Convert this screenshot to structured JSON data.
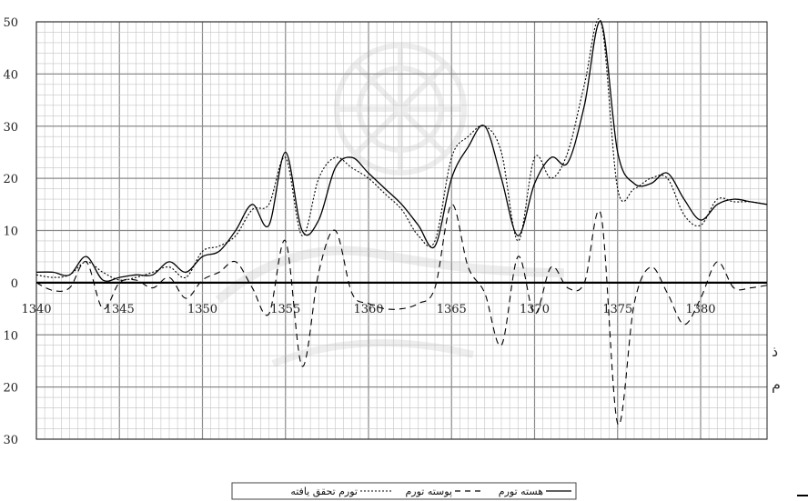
{
  "chart_data": {
    "type": "line",
    "title": "",
    "xlabel": "",
    "ylabel": "",
    "xlim": [
      1340,
      1384
    ],
    "ylim": [
      -30,
      50
    ],
    "x_ticks": [
      1340,
      1345,
      1350,
      1355,
      1360,
      1365,
      1370,
      1375,
      1380
    ],
    "y_ticks": [
      -30,
      -20,
      -10,
      0,
      10,
      20,
      30,
      40,
      50
    ],
    "y_tick_labels": [
      "30",
      "20",
      "10",
      "0",
      "10",
      "20",
      "30",
      "40",
      "50"
    ],
    "grid": true,
    "legend_placement": "bottom-center",
    "series": [
      {
        "name": "هسته تورم",
        "style": "solid",
        "x": [
          1340,
          1341,
          1342,
          1343,
          1344,
          1345,
          1346,
          1347,
          1348,
          1349,
          1350,
          1351,
          1352,
          1353,
          1354,
          1355,
          1356,
          1357,
          1358,
          1359,
          1360,
          1361,
          1362,
          1363,
          1364,
          1365,
          1366,
          1367,
          1368,
          1369,
          1370,
          1371,
          1372,
          1373,
          1374,
          1375,
          1376,
          1377,
          1378,
          1379,
          1380,
          1381,
          1382,
          1383,
          1384
        ],
        "y": [
          2,
          2,
          1.5,
          5,
          0.5,
          1,
          1.5,
          1.5,
          4,
          2,
          5,
          6,
          10,
          15,
          11,
          25,
          10,
          12,
          22,
          24,
          21,
          18,
          15,
          11,
          7,
          20,
          26,
          30,
          20,
          9,
          19,
          24,
          23,
          34,
          50,
          25,
          19,
          19,
          21,
          16,
          12,
          15,
          16,
          15.5,
          15
        ]
      },
      {
        "name": "تورم تحقق یافته",
        "style": "dotted",
        "x": [
          1340,
          1341,
          1342,
          1343,
          1344,
          1345,
          1346,
          1347,
          1348,
          1349,
          1350,
          1351,
          1352,
          1353,
          1354,
          1355,
          1356,
          1357,
          1358,
          1359,
          1360,
          1361,
          1362,
          1363,
          1364,
          1365,
          1366,
          1367,
          1368,
          1369,
          1370,
          1371,
          1372,
          1373,
          1374,
          1375,
          1376,
          1377,
          1378,
          1379,
          1380,
          1381,
          1382,
          1383,
          1384
        ],
        "y": [
          1.5,
          1,
          1.5,
          4,
          2,
          0.5,
          1,
          2,
          3,
          1,
          6,
          7,
          9,
          14,
          15,
          24,
          9,
          20,
          24,
          22,
          20,
          17,
          14,
          9,
          8,
          24,
          28,
          30,
          25,
          8,
          24,
          20,
          25,
          38,
          50,
          18,
          18,
          20,
          20,
          13,
          11,
          16,
          15.5,
          15.5,
          15
        ]
      },
      {
        "name": "پوسته تورم",
        "style": "dashed",
        "x": [
          1340,
          1341,
          1342,
          1343,
          1344,
          1345,
          1346,
          1347,
          1348,
          1349,
          1350,
          1351,
          1352,
          1353,
          1354,
          1355,
          1356,
          1357,
          1358,
          1359,
          1360,
          1361,
          1362,
          1363,
          1364,
          1365,
          1366,
          1367,
          1368,
          1369,
          1370,
          1371,
          1372,
          1373,
          1374,
          1375,
          1376,
          1377,
          1378,
          1379,
          1380,
          1381,
          1382,
          1383,
          1384
        ],
        "y": [
          0,
          -1.5,
          -1,
          4,
          -5,
          0,
          0.5,
          -1,
          1,
          -3,
          0.5,
          2,
          4,
          -1,
          -6,
          8,
          -16,
          2,
          10,
          -2,
          -4,
          -5,
          -5,
          -4,
          -1,
          15,
          3,
          -2,
          -12,
          5,
          -6,
          3,
          -1,
          0,
          13,
          -27,
          -4,
          3,
          -2,
          -8,
          -3,
          4,
          -1,
          -1,
          -0.5
        ]
      }
    ]
  },
  "side_marks": [
    "ذ",
    "م"
  ]
}
